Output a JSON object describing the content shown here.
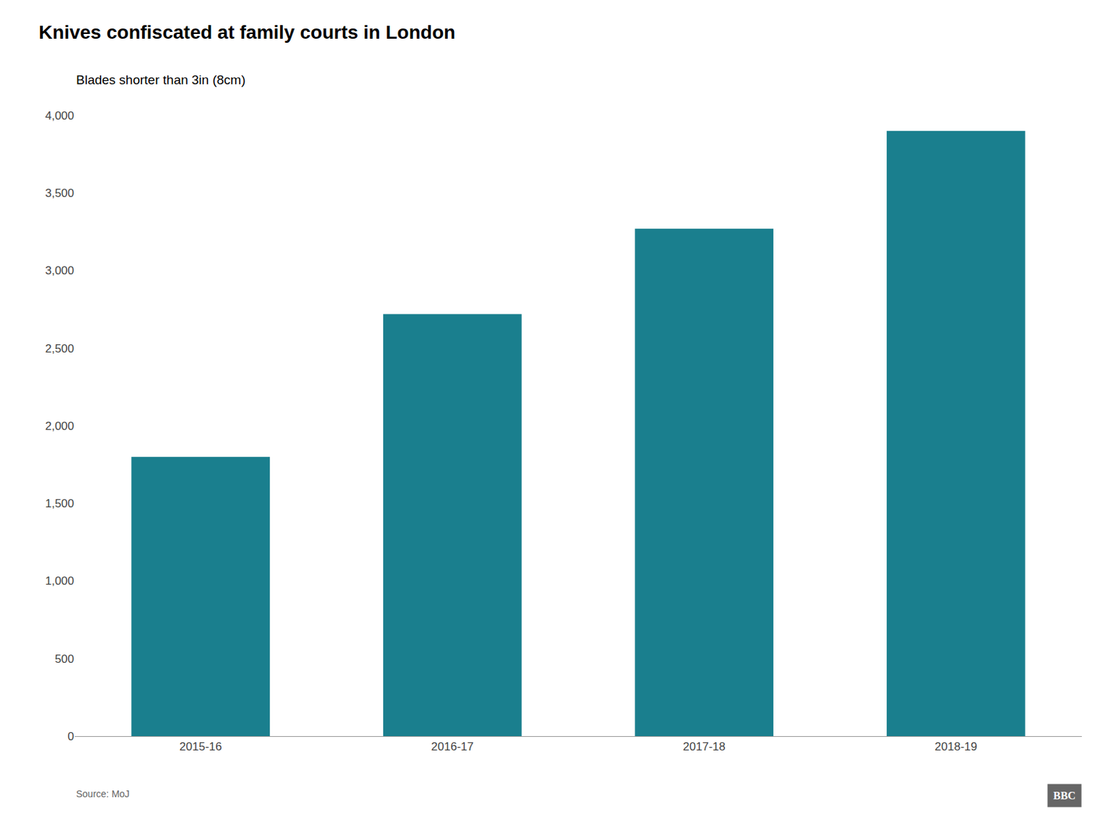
{
  "chart_data": {
    "type": "bar",
    "title": "Knives confiscated at family courts in London",
    "subtitle": "Blades shorter than 3in (8cm)",
    "categories": [
      "2015-16",
      "2016-17",
      "2017-18",
      "2018-19"
    ],
    "values": [
      1800,
      2720,
      3270,
      3900
    ],
    "color": "#1a7f8e",
    "ylim": [
      0,
      4000
    ],
    "yticks": [
      0,
      500,
      {
        "value": 1000,
        "label": "1,000"
      },
      {
        "value": 1500,
        "label": "1,500"
      },
      {
        "value": 2000,
        "label": "2,000"
      },
      {
        "value": 2500,
        "label": "2,500"
      },
      {
        "value": 3000,
        "label": "3,000"
      },
      {
        "value": 3500,
        "label": "3,500"
      },
      {
        "value": 4000,
        "label": "4,000"
      }
    ],
    "grid": false,
    "annotations": [
      "Source: MoJ",
      "BBC"
    ]
  }
}
